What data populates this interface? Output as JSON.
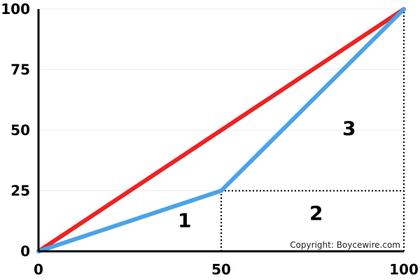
{
  "chart_data": {
    "type": "line",
    "title": "",
    "xlabel": "",
    "ylabel": "",
    "xlim": [
      0,
      100
    ],
    "ylim": [
      0,
      100
    ],
    "grid": true,
    "x_ticks": [
      {
        "value": 0,
        "label": "0"
      },
      {
        "value": 50,
        "label": "50"
      },
      {
        "value": 100,
        "label": "100"
      }
    ],
    "y_ticks": [
      {
        "value": 0,
        "label": "0"
      },
      {
        "value": 25,
        "label": "25"
      },
      {
        "value": 50,
        "label": "50"
      },
      {
        "value": 75,
        "label": "75"
      },
      {
        "value": 100,
        "label": "100"
      }
    ],
    "series": [
      {
        "color": "#ee2222",
        "points": [
          [
            0,
            0
          ],
          [
            100,
            100
          ]
        ]
      },
      {
        "color": "#4aa3ea",
        "points": [
          [
            0,
            0
          ],
          [
            50,
            25
          ],
          [
            100,
            100
          ]
        ]
      }
    ],
    "reference_lines": [
      {
        "points": [
          [
            50,
            0
          ],
          [
            50,
            25
          ]
        ]
      },
      {
        "points": [
          [
            50,
            25
          ],
          [
            100,
            25
          ]
        ]
      },
      {
        "points": [
          [
            100,
            0
          ],
          [
            100,
            100
          ]
        ]
      }
    ],
    "annotations": [
      {
        "text": "1",
        "x": 40,
        "y": 10
      },
      {
        "text": "2",
        "x": 76,
        "y": 13
      },
      {
        "text": "3",
        "x": 85,
        "y": 48
      }
    ],
    "copyright": "Copyright: Boycewire.com"
  }
}
